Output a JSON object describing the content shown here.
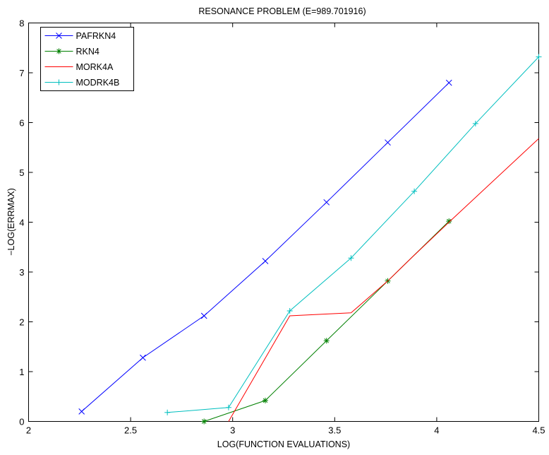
{
  "chart_data": {
    "type": "line",
    "title": "RESONANCE PROBLEM (E=989.701916)",
    "xlabel": "LOG(FUNCTION EVALUATIONS)",
    "ylabel": "−LOG(ERRMAX)",
    "xlim": [
      2,
      4.5
    ],
    "ylim": [
      0,
      8
    ],
    "xticks": [
      "2",
      "2.5",
      "3",
      "3.5",
      "4",
      "4.5"
    ],
    "yticks": [
      "0",
      "1",
      "2",
      "3",
      "4",
      "5",
      "6",
      "7",
      "8"
    ],
    "grid": false,
    "legend_position": "top-left",
    "series": [
      {
        "name": "PAFRKN4",
        "color": "#0000ff",
        "marker": "x",
        "x": [
          2.26,
          2.56,
          2.86,
          3.16,
          3.46,
          3.76,
          4.06
        ],
        "y": [
          0.2,
          1.28,
          2.12,
          3.22,
          4.4,
          5.6,
          6.8
        ]
      },
      {
        "name": "RKN4",
        "color": "#008000",
        "marker": "*",
        "x": [
          2.86,
          3.16,
          3.46,
          3.76,
          4.06
        ],
        "y": [
          0.0,
          0.42,
          1.62,
          2.82,
          4.02
        ]
      },
      {
        "name": "MORK4A",
        "color": "#ff0000",
        "marker": "none",
        "x": [
          2.98,
          3.28,
          3.58,
          3.76,
          3.88,
          4.06,
          4.5
        ],
        "y": [
          0.0,
          2.12,
          2.18,
          2.82,
          3.3,
          4.0,
          5.68
        ]
      },
      {
        "name": "MODRK4B",
        "color": "#00bfbf",
        "marker": "+",
        "x": [
          2.68,
          2.98,
          3.28,
          3.58,
          3.89,
          4.19,
          4.5
        ],
        "y": [
          0.18,
          0.28,
          2.22,
          3.28,
          4.62,
          5.98,
          7.32
        ]
      }
    ]
  }
}
